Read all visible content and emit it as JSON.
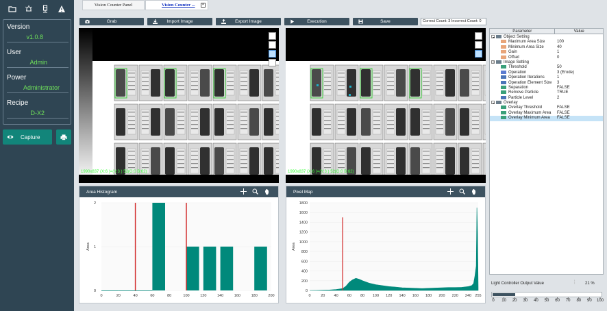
{
  "sidebar": {
    "icons": [
      "folder-icon",
      "alarm-icon",
      "tower-light-icon",
      "warning-icon"
    ],
    "info": [
      {
        "label": "Version",
        "value": "v1.0.8"
      },
      {
        "label": "User",
        "value": "Admin"
      },
      {
        "label": "Power",
        "value": "Administrator"
      },
      {
        "label": "Recipe",
        "value": "D-X2"
      }
    ],
    "capture_label": "Capture",
    "print_icon": "printer-icon"
  },
  "tabs": [
    {
      "label": "Vision Counter Panel",
      "active": false
    },
    {
      "label": "Vision Counter ...",
      "active": true
    }
  ],
  "tab_close_icon": "close-icon",
  "toolbar": {
    "grab": "Grab",
    "import_image": "Import Image",
    "export_image": "Export Image",
    "execution": "Execution",
    "save": "Save",
    "counts": "Correct Count: 3  Incorrect Count: 0"
  },
  "image_panes": {
    "left_coord": "1990x837 (X:6 )=(Y:3 ) 52(G:0 B:62)",
    "right_coord": "1990x837 (X:6 )=(Y:3 ) 52(G:0 B:62)"
  },
  "colors": {
    "sidebar": "#2f4553",
    "accent": "#12857a",
    "bars": "#00897b",
    "threshold_line": "#d32f2f",
    "status_text": "#6fe05a",
    "selected_box": "#3fcf3f"
  },
  "area_histogram": {
    "title": "Area Histogram",
    "chart_data": {
      "type": "bar",
      "xlabel": "",
      "ylabel": "Area",
      "xlim": [
        0,
        200
      ],
      "ylim": [
        0,
        2
      ],
      "x_ticks": [
        0,
        20,
        40,
        60,
        80,
        100,
        120,
        140,
        160,
        180,
        200
      ],
      "y_ticks": [
        0,
        1,
        2
      ],
      "bins": [
        {
          "x0": 0,
          "x1": 20,
          "value": 0
        },
        {
          "x0": 20,
          "x1": 40,
          "value": 0
        },
        {
          "x0": 40,
          "x1": 60,
          "value": 0
        },
        {
          "x0": 60,
          "x1": 75,
          "value": 2
        },
        {
          "x0": 100,
          "x1": 115,
          "value": 1
        },
        {
          "x0": 120,
          "x1": 135,
          "value": 1
        },
        {
          "x0": 140,
          "x1": 155,
          "value": 1
        },
        {
          "x0": 180,
          "x1": 195,
          "value": 1
        }
      ],
      "threshold_lines": [
        40,
        100
      ]
    }
  },
  "pixel_map": {
    "title": "Pixel Map",
    "chart_data": {
      "type": "area",
      "xlabel": "",
      "ylabel": "Area",
      "xlim": [
        0,
        255
      ],
      "ylim": [
        0,
        1800
      ],
      "x_ticks": [
        0,
        20,
        40,
        60,
        80,
        100,
        120,
        140,
        160,
        180,
        200,
        220,
        240,
        255
      ],
      "y_ticks": [
        0,
        200,
        400,
        600,
        800,
        1000,
        1200,
        1400,
        1600,
        1800
      ],
      "x": [
        0,
        10,
        20,
        30,
        40,
        50,
        55,
        60,
        65,
        70,
        75,
        80,
        90,
        100,
        110,
        120,
        130,
        140,
        150,
        160,
        170,
        180,
        190,
        200,
        210,
        220,
        230,
        240,
        245,
        248,
        250,
        252,
        253,
        254,
        255
      ],
      "values": [
        0,
        2,
        5,
        10,
        20,
        40,
        90,
        170,
        220,
        250,
        230,
        200,
        150,
        120,
        100,
        80,
        70,
        55,
        50,
        45,
        40,
        45,
        50,
        55,
        60,
        60,
        65,
        80,
        100,
        140,
        300,
        500,
        1700,
        1200,
        60
      ],
      "threshold_lines": [
        50
      ]
    }
  },
  "properties": {
    "headers": [
      "Parameter",
      "Value"
    ],
    "rows": [
      {
        "level": 0,
        "expand": true,
        "icon": "folder-icon",
        "name": "Object Setting",
        "value": ""
      },
      {
        "level": 1,
        "icon": "number-icon",
        "name": "Maximum Area Size",
        "value": "100"
      },
      {
        "level": 1,
        "icon": "number-icon",
        "name": "Minimum Area Size",
        "value": "40"
      },
      {
        "level": 1,
        "icon": "number-icon",
        "name": "Gain",
        "value": "1"
      },
      {
        "level": 1,
        "icon": "number-icon",
        "name": "Offset",
        "value": "0"
      },
      {
        "level": 0,
        "expand": true,
        "icon": "folder-icon",
        "name": "Image Setting",
        "value": ""
      },
      {
        "level": 1,
        "icon": "tf-icon",
        "name": "Threshold",
        "value": "50"
      },
      {
        "level": 1,
        "icon": "enum-icon",
        "name": "Operation",
        "value": "3 (Erode)"
      },
      {
        "level": 1,
        "icon": "int-icon",
        "name": "Operation Iterations",
        "value": "1"
      },
      {
        "level": 1,
        "icon": "int-icon",
        "name": "Operation Element Size",
        "value": "3"
      },
      {
        "level": 1,
        "icon": "tf-icon",
        "name": "Separation",
        "value": "FALSE"
      },
      {
        "level": 1,
        "icon": "tf-icon",
        "name": "Remove Particle",
        "value": "TRUE"
      },
      {
        "level": 1,
        "icon": "int-icon",
        "name": "Particle Level",
        "value": "2"
      },
      {
        "level": 0,
        "expand": true,
        "icon": "folder-icon",
        "name": "Overlay",
        "value": ""
      },
      {
        "level": 1,
        "icon": "tf-icon",
        "name": "Overlay Threshold",
        "value": "FALSE"
      },
      {
        "level": 1,
        "icon": "tf-icon",
        "name": "Overlay Maximum Area",
        "value": "FALSE"
      },
      {
        "level": 1,
        "icon": "tf-icon",
        "name": "Overlay Minimum Area",
        "value": "FALSE",
        "selected": true
      }
    ]
  },
  "light_controller": {
    "label": "Light Controller Output Value",
    "value_text": "21 %",
    "value": 21,
    "ticks": [
      "0",
      "10",
      "20",
      "30",
      "40",
      "50",
      "60",
      "70",
      "80",
      "90",
      "100"
    ]
  }
}
